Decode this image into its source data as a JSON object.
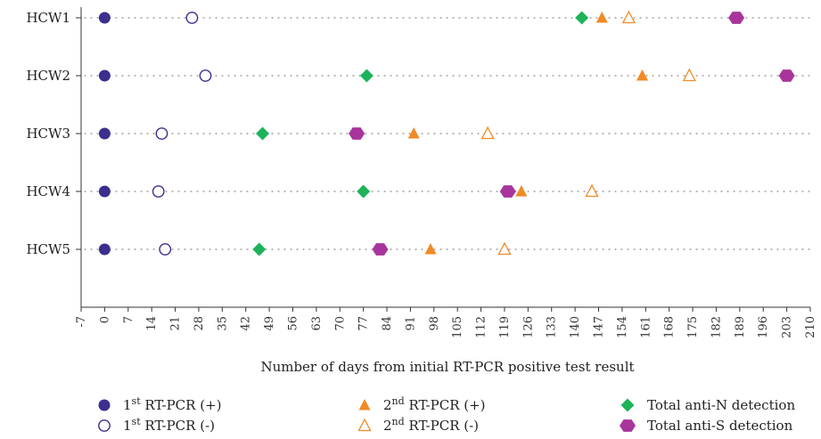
{
  "chart_data": {
    "type": "scatter",
    "xlabel": "Number of days from initial RT-PCR positive test result",
    "xlim": [
      -7,
      210
    ],
    "x_ticks": [
      -7,
      0,
      7,
      14,
      21,
      28,
      35,
      42,
      49,
      56,
      63,
      70,
      77,
      84,
      91,
      98,
      105,
      112,
      119,
      126,
      133,
      140,
      147,
      154,
      161,
      168,
      175,
      182,
      189,
      196,
      203,
      210
    ],
    "categories": [
      "HCW1",
      "HCW2",
      "HCW3",
      "HCW4",
      "HCW5"
    ],
    "series": [
      {
        "key": "pcr1_pos",
        "name_prefix": "1",
        "name_sup": "st",
        "name_suffix": " RT-PCR (+)",
        "marker": "circle-filled",
        "color": "#3a2f8f",
        "values": [
          0,
          0,
          0,
          0,
          0
        ]
      },
      {
        "key": "pcr1_neg",
        "name_prefix": "1",
        "name_sup": "st",
        "name_suffix": " RT-PCR (-)",
        "marker": "circle-open",
        "color": "#3a2f8f",
        "values": [
          26,
          30,
          17,
          16,
          18
        ]
      },
      {
        "key": "pcr2_pos",
        "name_prefix": "2",
        "name_sup": "nd",
        "name_suffix": " RT-PCR (+)",
        "marker": "triangle-filled",
        "color": "#f08a24",
        "values": [
          148,
          160,
          92,
          124,
          97
        ]
      },
      {
        "key": "pcr2_neg",
        "name_prefix": "2",
        "name_sup": "nd",
        "name_suffix": " RT-PCR (-)",
        "marker": "triangle-open",
        "color": "#f08a24",
        "values": [
          156,
          174,
          114,
          145,
          119
        ]
      },
      {
        "key": "anti_n",
        "name_prefix": "Total anti-N detection",
        "name_sup": "",
        "name_suffix": "",
        "marker": "diamond",
        "color": "#1db35a",
        "values": [
          142,
          78,
          47,
          77,
          46
        ]
      },
      {
        "key": "anti_s",
        "name_prefix": "Total anti-S detection",
        "name_sup": "",
        "name_suffix": "",
        "marker": "hexagon",
        "color": "#a8359c",
        "values": [
          188,
          203,
          75,
          120,
          82
        ]
      }
    ],
    "grid": "dotted row lines",
    "legend_position": "bottom"
  }
}
